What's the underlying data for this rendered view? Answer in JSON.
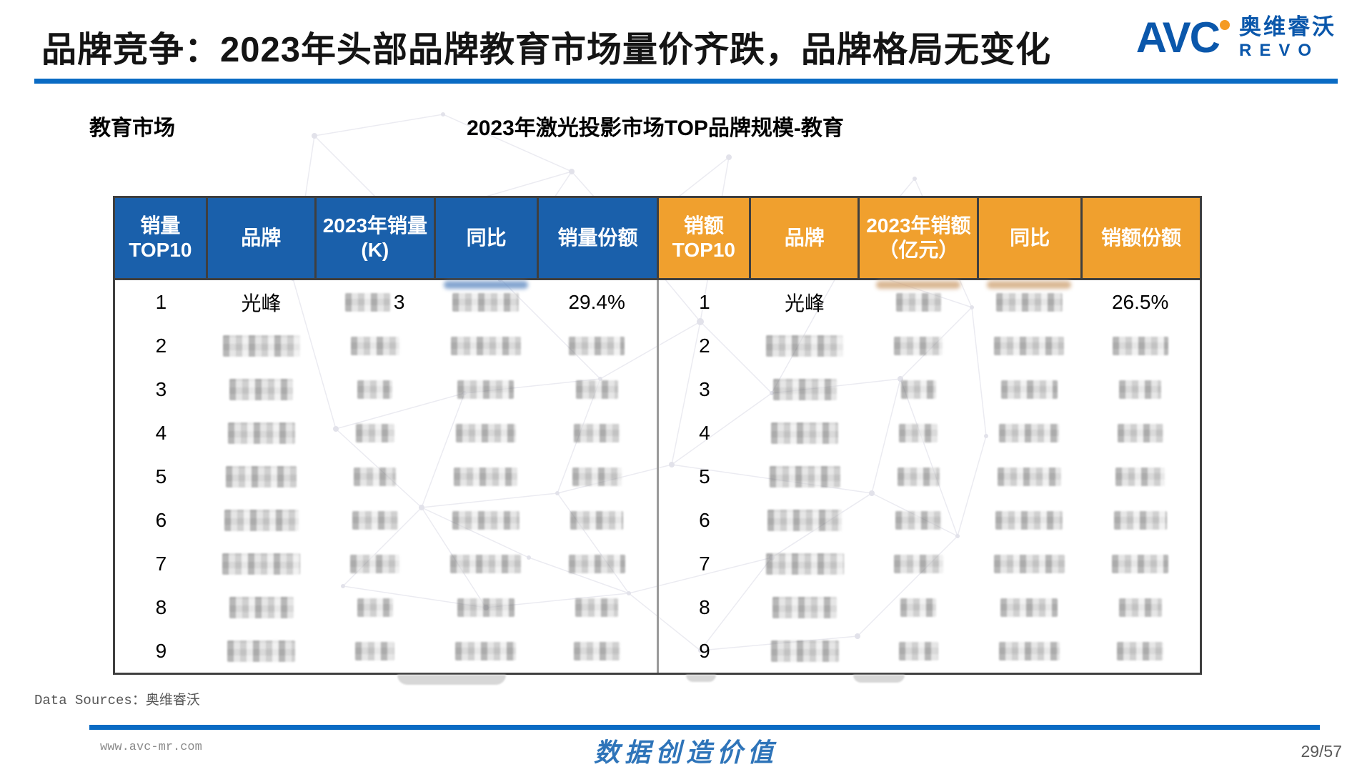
{
  "header": {
    "title": "品牌竞争：2023年头部品牌教育市场量价齐跌，品牌格局无变化",
    "logo": {
      "avc": "AVC",
      "cn": "奥维睿沃",
      "sub": "REVO"
    }
  },
  "section_label": "教育市场",
  "table_title": "2023年激光投影市场TOP品牌规模-教育",
  "table": {
    "left": {
      "headers": [
        {
          "l1": "销量TOP10"
        },
        {
          "l1": "品牌"
        },
        {
          "l1": "2023年销量",
          "l2": "(K)"
        },
        {
          "l1": "同比"
        },
        {
          "l1": "销量份额"
        }
      ],
      "rows": [
        {
          "rank": "1",
          "brand": "光峰",
          "value": null,
          "value_suffix": "3",
          "yoy": null,
          "share": "29.4%",
          "artifacts": {
            "yoy": "blue"
          }
        },
        {
          "rank": "2",
          "brand": null,
          "value": null,
          "yoy": null,
          "share": null
        },
        {
          "rank": "3",
          "brand": null,
          "value": null,
          "yoy": null,
          "share": null
        },
        {
          "rank": "4",
          "brand": null,
          "value": null,
          "yoy": null,
          "share": null
        },
        {
          "rank": "5",
          "brand": null,
          "value": null,
          "yoy": null,
          "share": null
        },
        {
          "rank": "6",
          "brand": null,
          "value": null,
          "yoy": null,
          "share": null
        },
        {
          "rank": "7",
          "brand": null,
          "value": null,
          "yoy": null,
          "share": null
        },
        {
          "rank": "8",
          "brand": null,
          "value": null,
          "yoy": null,
          "share": null
        },
        {
          "rank": "9",
          "brand": null,
          "value": null,
          "yoy": null,
          "share": null
        }
      ]
    },
    "right": {
      "headers": [
        {
          "l1": "销额TOP10"
        },
        {
          "l1": "品牌"
        },
        {
          "l1": "2023年销额",
          "l2": "（亿元）"
        },
        {
          "l1": "同比"
        },
        {
          "l1": "销额份额"
        }
      ],
      "rows": [
        {
          "rank": "1",
          "brand": "光峰",
          "value": null,
          "yoy": null,
          "share": "26.5%",
          "artifacts": {
            "value": "tan",
            "yoy": "tan"
          }
        },
        {
          "rank": "2",
          "brand": null,
          "value": null,
          "yoy": null,
          "share": null
        },
        {
          "rank": "3",
          "brand": null,
          "value": null,
          "yoy": null,
          "share": null
        },
        {
          "rank": "4",
          "brand": null,
          "value": null,
          "yoy": null,
          "share": null
        },
        {
          "rank": "5",
          "brand": null,
          "value": null,
          "yoy": null,
          "share": null
        },
        {
          "rank": "6",
          "brand": null,
          "value": null,
          "yoy": null,
          "share": null
        },
        {
          "rank": "7",
          "brand": null,
          "value": null,
          "yoy": null,
          "share": null
        },
        {
          "rank": "8",
          "brand": null,
          "value": null,
          "yoy": null,
          "share": null
        },
        {
          "rank": "9",
          "brand": null,
          "value": null,
          "yoy": null,
          "share": null
        }
      ]
    }
  },
  "footer": {
    "data_sources": "Data Sources：奥维睿沃",
    "website": "www.avc-mr.com",
    "slogan": "数据创造价值",
    "page": "29/57"
  },
  "colors": {
    "header_blue": "#1A60AB",
    "header_orange": "#F0A02E",
    "rule_blue": "#0A6BC4",
    "logo_blue": "#0A57AB",
    "logo_orange": "#F59B22",
    "slogan_blue": "#2E74B9"
  }
}
